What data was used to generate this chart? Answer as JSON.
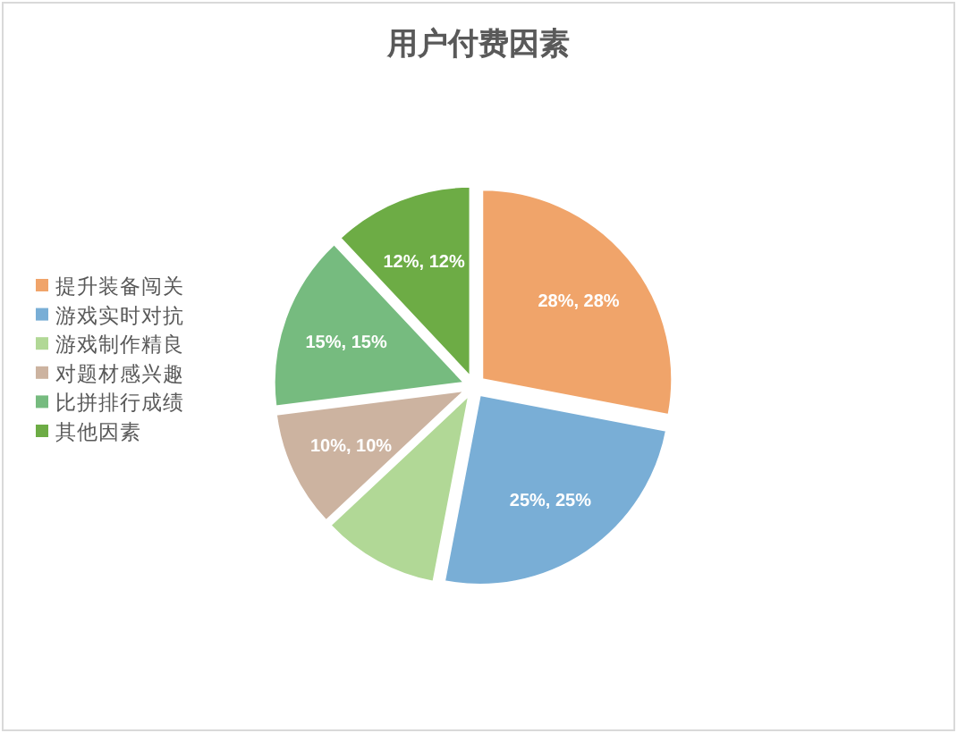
{
  "chart_data": {
    "type": "pie",
    "title": "用户付费因素",
    "categories": [
      "提升装备闯关",
      "游戏实时对抗",
      "游戏制作精良",
      "对题材感兴趣",
      "比拼排行成绩",
      "其他因素"
    ],
    "values": [
      28,
      25,
      10,
      10,
      15,
      12
    ],
    "colors": [
      "#f0a46a",
      "#79aed6",
      "#b1d896",
      "#ccb3a0",
      "#76bb7f",
      "#6dac45"
    ],
    "value_labels": [
      "28%, 28%",
      "25%, 25%",
      null,
      "10%, 10%",
      "15%, 15%",
      "12%, 12%"
    ],
    "legend": "left"
  }
}
